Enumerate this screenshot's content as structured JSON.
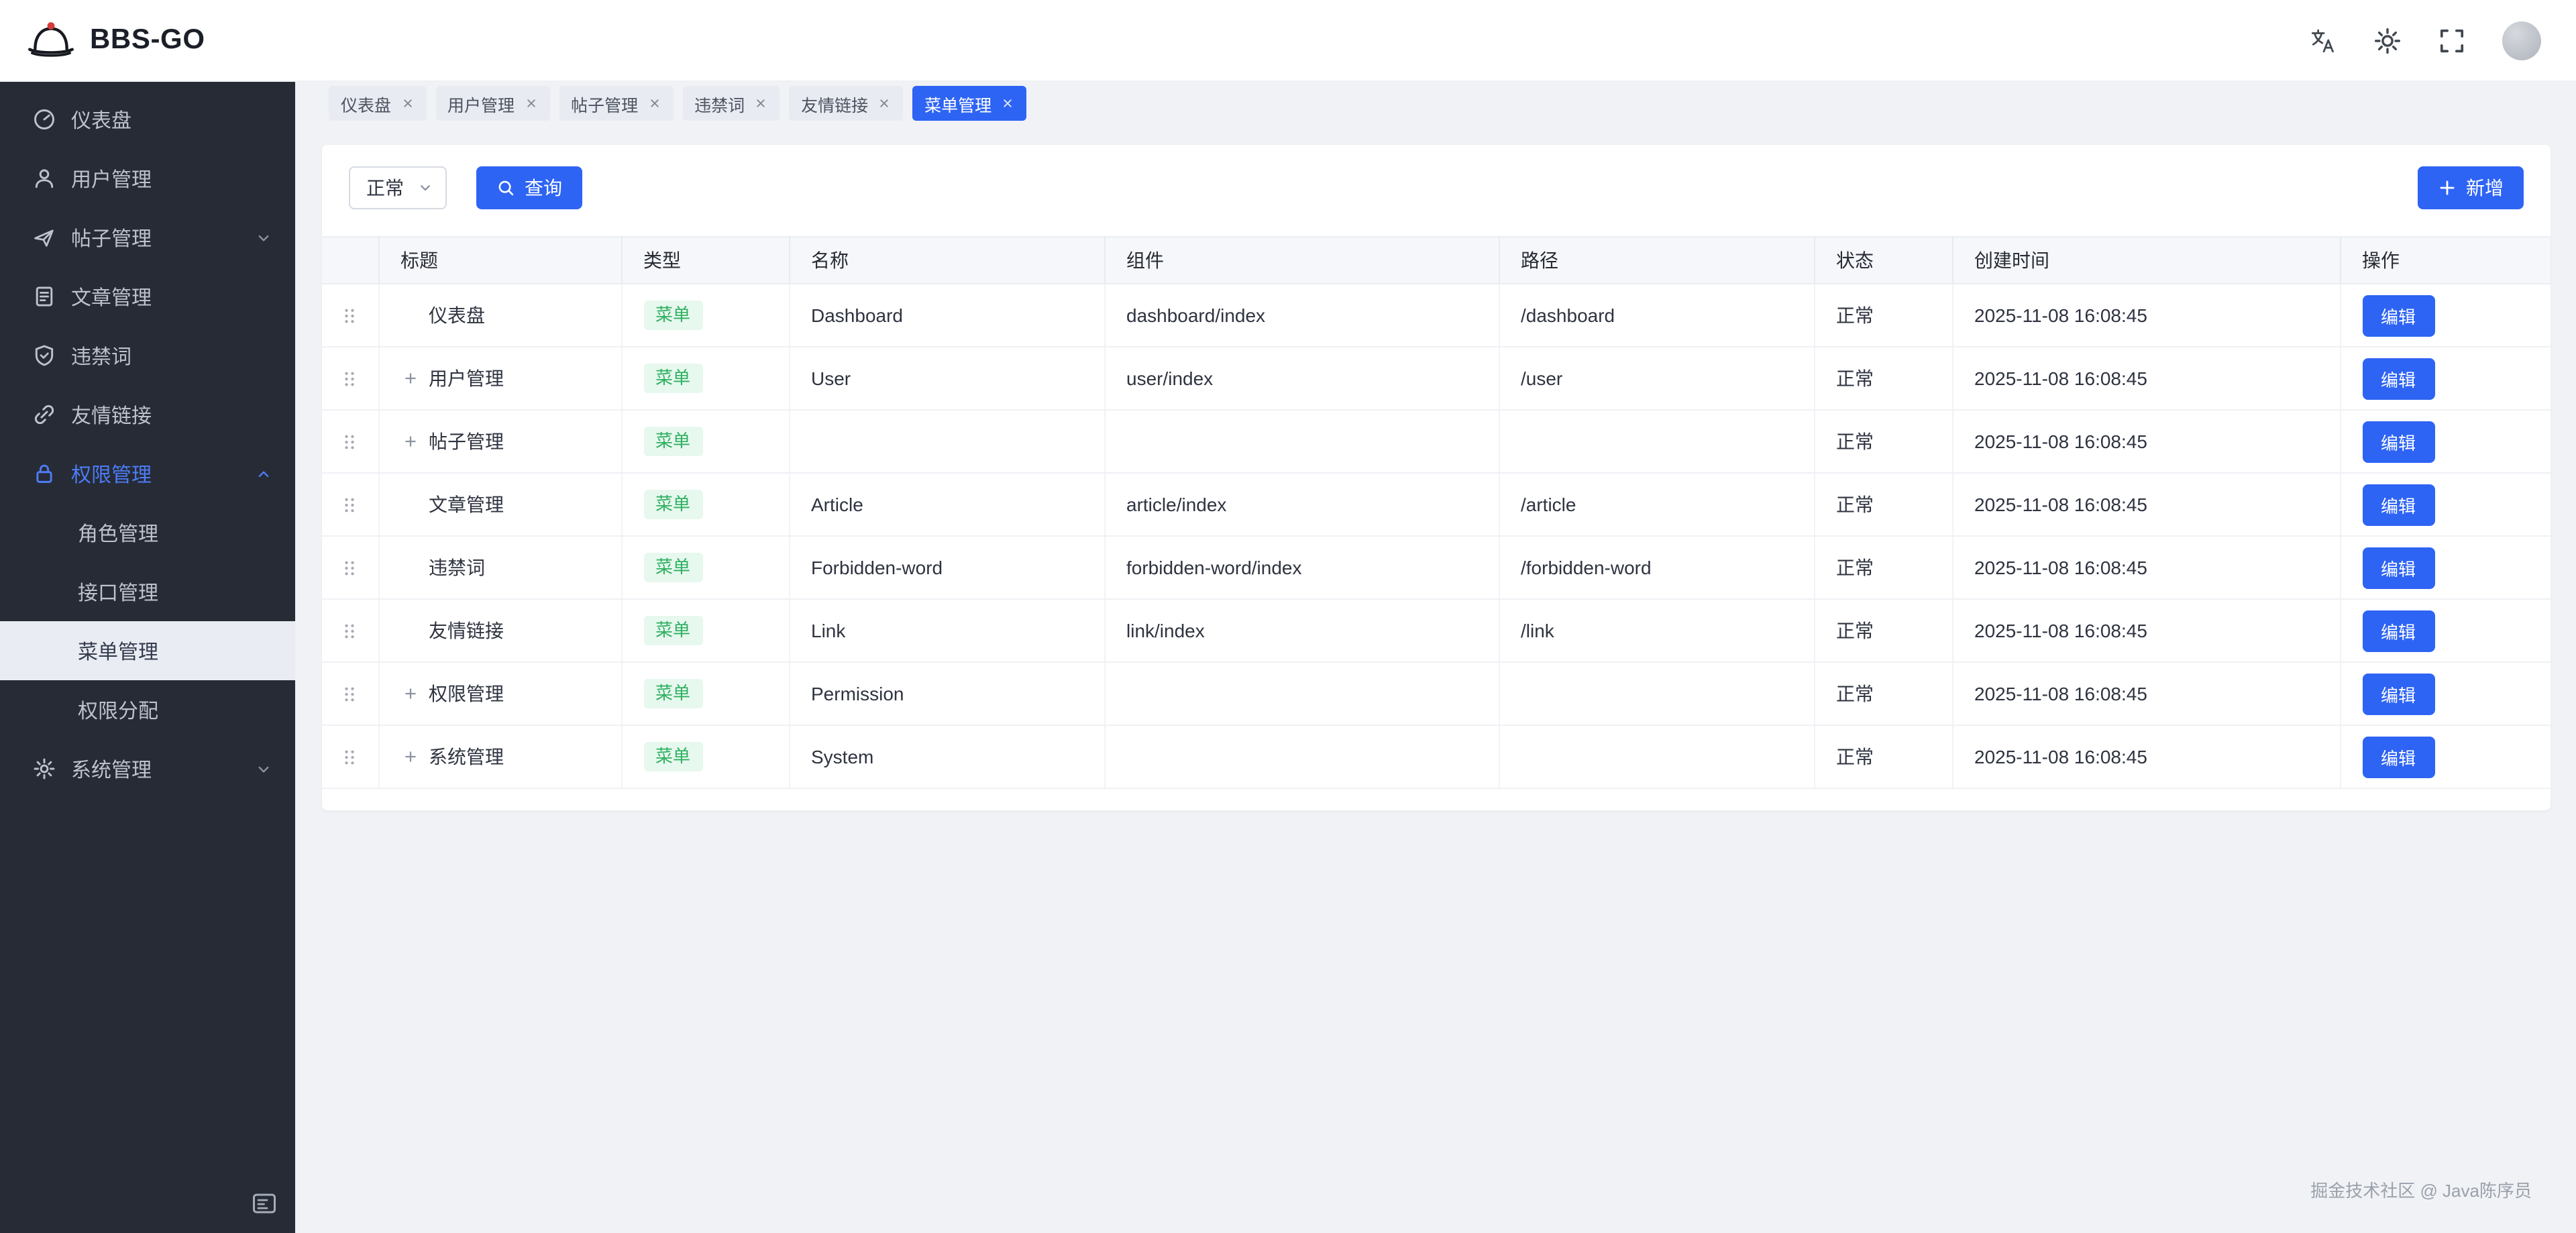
{
  "header": {
    "logo_text": "BBS-GO",
    "actions": [
      {
        "key": "translate",
        "icon": "translate-icon"
      },
      {
        "key": "theme",
        "icon": "sun-icon"
      },
      {
        "key": "fullscreen",
        "icon": "fullscreen-icon"
      }
    ],
    "avatar": {
      "key": "user-avatar"
    }
  },
  "sidebar": {
    "items": [
      {
        "key": "dashboard",
        "label": "仪表盘",
        "icon": "dashboard-icon"
      },
      {
        "key": "users",
        "label": "用户管理",
        "icon": "user-icon"
      },
      {
        "key": "posts",
        "label": "帖子管理",
        "icon": "post-icon",
        "chevron": "down"
      },
      {
        "key": "articles",
        "label": "文章管理",
        "icon": "article-icon"
      },
      {
        "key": "forbidden-words",
        "label": "违禁词",
        "icon": "shield-icon"
      },
      {
        "key": "links",
        "label": "友情链接",
        "icon": "link-icon"
      },
      {
        "key": "permissions",
        "label": "权限管理",
        "icon": "lock-icon",
        "chevron": "up",
        "active": true,
        "children": [
          {
            "key": "roles",
            "label": "角色管理"
          },
          {
            "key": "apis",
            "label": "接口管理"
          },
          {
            "key": "menus",
            "label": "菜单管理",
            "active": true
          },
          {
            "key": "permission-assign",
            "label": "权限分配"
          }
        ]
      },
      {
        "key": "system",
        "label": "系统管理",
        "icon": "gear-icon",
        "chevron": "down"
      }
    ]
  },
  "tabs": [
    {
      "key": "dashboard",
      "label": "仪表盘"
    },
    {
      "key": "users",
      "label": "用户管理"
    },
    {
      "key": "posts",
      "label": "帖子管理"
    },
    {
      "key": "forbidden-words",
      "label": "违禁词"
    },
    {
      "key": "links",
      "label": "友情链接"
    },
    {
      "key": "menus",
      "label": "菜单管理",
      "active": true
    }
  ],
  "toolbar": {
    "status_value": "正常",
    "search_label": "查询",
    "add_label": "新增"
  },
  "table": {
    "columns": [
      "标题",
      "类型",
      "名称",
      "组件",
      "路径",
      "状态",
      "创建时间",
      "操作"
    ],
    "edit_label": "编辑",
    "rows": [
      {
        "title": "仪表盘",
        "expandable": false,
        "type": "菜单",
        "name": "Dashboard",
        "component": "dashboard/index",
        "path": "/dashboard",
        "status": "正常",
        "created": "2025-11-08 16:08:45"
      },
      {
        "title": "用户管理",
        "expandable": true,
        "type": "菜单",
        "name": "User",
        "component": "user/index",
        "path": "/user",
        "status": "正常",
        "created": "2025-11-08 16:08:45"
      },
      {
        "title": "帖子管理",
        "expandable": true,
        "type": "菜单",
        "name": "",
        "component": "",
        "path": "",
        "status": "正常",
        "created": "2025-11-08 16:08:45"
      },
      {
        "title": "文章管理",
        "expandable": false,
        "type": "菜单",
        "name": "Article",
        "component": "article/index",
        "path": "/article",
        "status": "正常",
        "created": "2025-11-08 16:08:45"
      },
      {
        "title": "违禁词",
        "expandable": false,
        "type": "菜单",
        "name": "Forbidden-word",
        "component": "forbidden-word/index",
        "path": "/forbidden-word",
        "status": "正常",
        "created": "2025-11-08 16:08:45"
      },
      {
        "title": "友情链接",
        "expandable": false,
        "type": "菜单",
        "name": "Link",
        "component": "link/index",
        "path": "/link",
        "status": "正常",
        "created": "2025-11-08 16:08:45"
      },
      {
        "title": "权限管理",
        "expandable": true,
        "type": "菜单",
        "name": "Permission",
        "component": "",
        "path": "",
        "status": "正常",
        "created": "2025-11-08 16:08:45"
      },
      {
        "title": "系统管理",
        "expandable": true,
        "type": "菜单",
        "name": "System",
        "component": "",
        "path": "",
        "status": "正常",
        "created": "2025-11-08 16:08:45"
      }
    ]
  },
  "watermark": "掘金技术社区 @ Java陈序员",
  "colors": {
    "primary": "#2e64f4",
    "sidebar_bg": "#262b36",
    "badge_green_bg": "#e7f8ee",
    "badge_green_text": "#2fb061",
    "page_bg": "#f1f2f5"
  }
}
